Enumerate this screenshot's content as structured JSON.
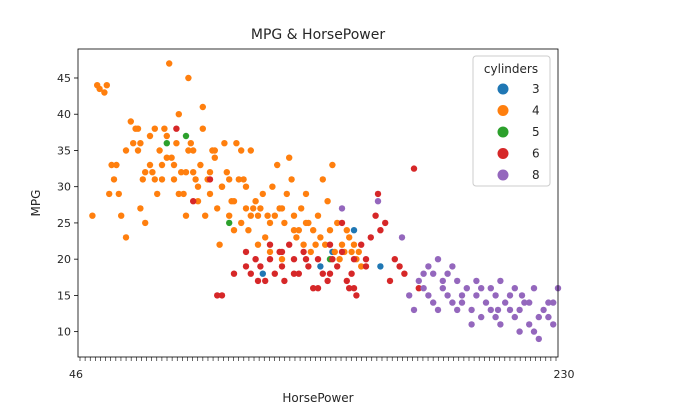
{
  "chart_data": {
    "type": "scatter",
    "title": "MPG & HorsePower",
    "xlabel": "HorsePower",
    "ylabel": "MPG",
    "xlim": [
      40,
      240
    ],
    "ylim": [
      6.5,
      49
    ],
    "yticks": [
      10,
      15,
      20,
      25,
      30,
      35,
      40,
      45
    ],
    "x_tick_labels_first": "46",
    "x_tick_labels_last": "230",
    "grid": false,
    "legend": {
      "title": "cylinders",
      "placement": "top-right",
      "entries": [
        {
          "label": "3",
          "color": "#1f77b4"
        },
        {
          "label": "4",
          "color": "#ff7f0e"
        },
        {
          "label": "5",
          "color": "#2ca02c"
        },
        {
          "label": "6",
          "color": "#d62728"
        },
        {
          "label": "8",
          "color": "#9467bd"
        }
      ]
    },
    "series": [
      {
        "name": "3",
        "color": "#1f77b4",
        "points": [
          [
            117,
            18
          ],
          [
            141,
            19
          ],
          [
            146,
            21
          ],
          [
            155,
            24
          ],
          [
            166,
            19
          ]
        ]
      },
      {
        "name": "4",
        "color": "#ff7f0e",
        "points": [
          [
            46,
            26
          ],
          [
            48,
            44
          ],
          [
            49,
            43.5
          ],
          [
            51,
            43
          ],
          [
            52,
            44
          ],
          [
            53,
            29
          ],
          [
            54,
            33
          ],
          [
            55,
            31
          ],
          [
            56,
            33
          ],
          [
            57,
            29
          ],
          [
            58,
            26
          ],
          [
            60,
            23
          ],
          [
            62,
            39
          ],
          [
            63,
            36
          ],
          [
            64,
            38
          ],
          [
            65,
            35
          ],
          [
            66,
            27
          ],
          [
            67,
            31
          ],
          [
            68,
            25
          ],
          [
            70,
            37
          ],
          [
            71,
            32
          ],
          [
            72,
            38
          ],
          [
            73,
            29
          ],
          [
            74,
            35
          ],
          [
            75,
            33
          ],
          [
            76,
            38
          ],
          [
            77,
            37
          ],
          [
            78,
            47
          ],
          [
            79,
            34
          ],
          [
            80,
            33
          ],
          [
            81,
            36
          ],
          [
            82,
            40
          ],
          [
            83,
            32
          ],
          [
            84,
            29
          ],
          [
            85,
            26
          ],
          [
            86,
            45
          ],
          [
            87,
            36
          ],
          [
            88,
            35
          ],
          [
            89,
            31
          ],
          [
            90,
            30
          ],
          [
            91,
            33
          ],
          [
            92,
            38
          ],
          [
            93,
            26
          ],
          [
            94,
            31
          ],
          [
            95,
            29
          ],
          [
            96,
            35
          ],
          [
            97,
            34
          ],
          [
            98,
            27
          ],
          [
            99,
            22
          ],
          [
            100,
            30
          ],
          [
            101,
            36
          ],
          [
            102,
            32
          ],
          [
            103,
            26
          ],
          [
            104,
            28
          ],
          [
            105,
            24
          ],
          [
            106,
            36
          ],
          [
            107,
            31
          ],
          [
            108,
            25
          ],
          [
            109,
            31
          ],
          [
            110,
            30
          ],
          [
            111,
            24
          ],
          [
            112,
            35
          ],
          [
            113,
            27
          ],
          [
            114,
            28
          ],
          [
            115,
            22
          ],
          [
            116,
            27
          ],
          [
            117,
            29
          ],
          [
            118,
            23
          ],
          [
            119,
            26
          ],
          [
            120,
            21
          ],
          [
            121,
            30
          ],
          [
            122,
            26
          ],
          [
            123,
            33
          ],
          [
            124,
            27
          ],
          [
            125,
            20
          ],
          [
            126,
            25
          ],
          [
            127,
            29
          ],
          [
            128,
            34
          ],
          [
            129,
            31
          ],
          [
            130,
            26
          ],
          [
            131,
            23
          ],
          [
            132,
            24
          ],
          [
            133,
            27
          ],
          [
            134,
            22
          ],
          [
            135,
            29
          ],
          [
            136,
            25
          ],
          [
            137,
            21
          ],
          [
            138,
            24
          ],
          [
            139,
            22
          ],
          [
            140,
            26
          ],
          [
            141,
            23
          ],
          [
            142,
            31
          ],
          [
            143,
            22
          ],
          [
            144,
            28
          ],
          [
            145,
            24
          ],
          [
            146,
            33
          ],
          [
            147,
            21
          ],
          [
            148,
            25
          ],
          [
            149,
            20
          ],
          [
            150,
            22
          ],
          [
            151,
            21
          ],
          [
            152,
            24
          ],
          [
            153,
            23
          ],
          [
            154,
            21
          ],
          [
            155,
            22
          ],
          [
            156,
            20
          ],
          [
            157,
            21
          ],
          [
            158,
            19
          ],
          [
            60,
            35
          ],
          [
            65,
            38
          ],
          [
            70,
            33
          ],
          [
            75,
            31
          ],
          [
            80,
            31
          ],
          [
            85,
            32
          ],
          [
            90,
            28
          ],
          [
            95,
            32
          ],
          [
            100,
            30
          ],
          [
            105,
            28
          ],
          [
            110,
            27
          ],
          [
            115,
            26
          ],
          [
            120,
            25
          ],
          [
            125,
            27
          ],
          [
            130,
            24
          ],
          [
            135,
            25
          ],
          [
            66,
            36
          ],
          [
            88,
            32
          ],
          [
            92,
            41
          ],
          [
            68,
            32
          ],
          [
            72,
            31
          ],
          [
            77,
            34
          ],
          [
            82,
            29
          ],
          [
            86,
            35
          ],
          [
            97,
            35
          ],
          [
            103,
            31
          ],
          [
            108,
            35
          ],
          [
            112,
            26
          ]
        ]
      },
      {
        "name": "5",
        "color": "#2ca02c",
        "points": [
          [
            77,
            36
          ],
          [
            85,
            37
          ],
          [
            103,
            25
          ],
          [
            145,
            20
          ]
        ]
      },
      {
        "name": "6",
        "color": "#d62728",
        "points": [
          [
            81,
            38
          ],
          [
            88,
            28
          ],
          [
            95,
            31
          ],
          [
            98,
            15
          ],
          [
            100,
            15
          ],
          [
            105,
            18
          ],
          [
            110,
            21
          ],
          [
            112,
            18
          ],
          [
            114,
            20
          ],
          [
            116,
            19
          ],
          [
            118,
            17
          ],
          [
            120,
            20
          ],
          [
            122,
            18
          ],
          [
            124,
            21
          ],
          [
            125,
            19
          ],
          [
            126,
            17
          ],
          [
            128,
            22
          ],
          [
            130,
            20
          ],
          [
            132,
            18
          ],
          [
            134,
            21
          ],
          [
            136,
            19
          ],
          [
            138,
            16
          ],
          [
            140,
            20
          ],
          [
            142,
            18
          ],
          [
            144,
            17
          ],
          [
            145,
            22
          ],
          [
            146,
            20
          ],
          [
            148,
            19
          ],
          [
            150,
            21
          ],
          [
            152,
            17
          ],
          [
            153,
            16
          ],
          [
            154,
            18
          ],
          [
            155,
            20
          ],
          [
            156,
            15
          ],
          [
            158,
            22
          ],
          [
            160,
            19
          ],
          [
            162,
            23
          ],
          [
            164,
            26
          ],
          [
            165,
            29
          ],
          [
            166,
            24
          ],
          [
            168,
            25
          ],
          [
            170,
            17
          ],
          [
            172,
            20
          ],
          [
            174,
            19
          ],
          [
            176,
            18
          ],
          [
            180,
            32.5
          ],
          [
            182,
            16
          ],
          [
            110,
            19
          ],
          [
            120,
            22
          ],
          [
            130,
            18
          ],
          [
            140,
            16
          ],
          [
            150,
            25
          ],
          [
            160,
            20
          ],
          [
            135,
            20
          ],
          [
            145,
            18
          ],
          [
            155,
            16
          ],
          [
            125,
            21
          ],
          [
            115,
            17
          ]
        ]
      },
      {
        "name": "8",
        "color": "#9467bd",
        "points": [
          [
            150,
            27
          ],
          [
            165,
            28
          ],
          [
            175,
            23
          ],
          [
            178,
            15
          ],
          [
            180,
            13
          ],
          [
            182,
            17
          ],
          [
            184,
            18
          ],
          [
            186,
            19
          ],
          [
            188,
            14
          ],
          [
            190,
            20
          ],
          [
            192,
            16
          ],
          [
            194,
            15
          ],
          [
            196,
            19
          ],
          [
            198,
            17
          ],
          [
            200,
            14
          ],
          [
            202,
            16
          ],
          [
            204,
            13
          ],
          [
            206,
            15
          ],
          [
            208,
            12
          ],
          [
            210,
            14
          ],
          [
            212,
            16
          ],
          [
            214,
            15
          ],
          [
            215,
            13
          ],
          [
            216,
            17
          ],
          [
            218,
            14
          ],
          [
            220,
            13
          ],
          [
            222,
            12
          ],
          [
            224,
            10
          ],
          [
            225,
            15
          ],
          [
            226,
            14
          ],
          [
            228,
            11
          ],
          [
            230,
            16
          ],
          [
            232,
            9
          ],
          [
            234,
            13
          ],
          [
            236,
            12
          ],
          [
            238,
            14
          ],
          [
            240,
            16
          ],
          [
            188,
            18
          ],
          [
            192,
            17
          ],
          [
            196,
            14
          ],
          [
            200,
            15
          ],
          [
            204,
            11
          ],
          [
            208,
            16
          ],
          [
            212,
            13
          ],
          [
            216,
            11
          ],
          [
            220,
            15
          ],
          [
            224,
            13
          ],
          [
            228,
            14
          ],
          [
            232,
            12
          ],
          [
            236,
            14
          ],
          [
            184,
            16
          ],
          [
            190,
            13
          ],
          [
            198,
            13
          ],
          [
            206,
            17
          ],
          [
            214,
            12
          ],
          [
            222,
            16
          ],
          [
            230,
            10
          ],
          [
            238,
            11
          ],
          [
            186,
            15
          ],
          [
            194,
            18
          ]
        ]
      }
    ]
  }
}
